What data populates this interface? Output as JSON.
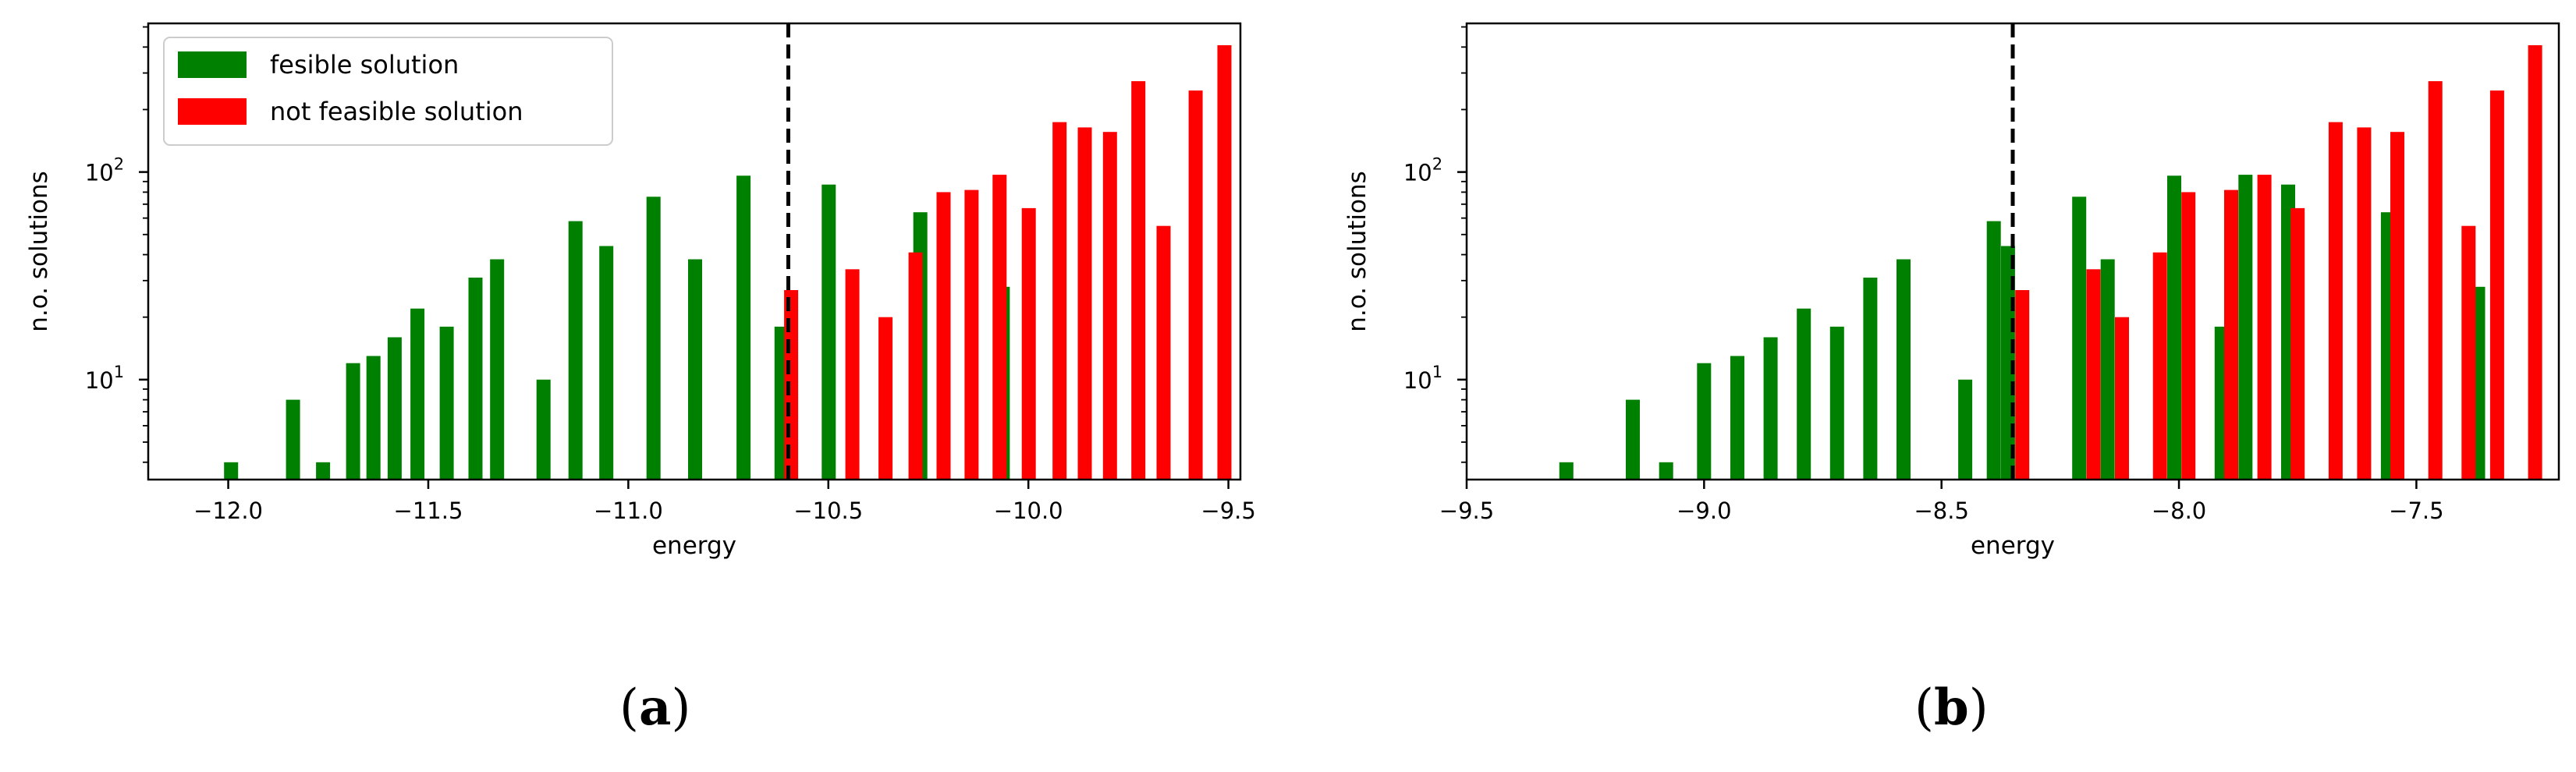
{
  "colors": {
    "feasible": "#008000",
    "not_feasible": "#ff0000",
    "axis": "#000000"
  },
  "chart_data": [
    {
      "type": "bar",
      "caption_letter": "a",
      "xlabel": "energy",
      "ylabel": "n.o. solutions",
      "yscale": "log",
      "xlim": [
        -12.2,
        -9.47
      ],
      "ylim": [
        3.3,
        520
      ],
      "xticks": [
        "−12.0",
        "−11.5",
        "−11.0",
        "−10.5",
        "−10.0",
        "−9.5"
      ],
      "xtick_values": [
        -12.0,
        -11.5,
        -11.0,
        -10.5,
        -10.0,
        -9.5
      ],
      "yticks": [
        {
          "base": "10",
          "exp": "1",
          "value": 10
        },
        {
          "base": "10",
          "exp": "2",
          "value": 100
        }
      ],
      "threshold": -10.6,
      "threshold_style": "dashed",
      "legend": {
        "position": "upper-left",
        "entries": [
          "fesible solution",
          "not feasible solution"
        ]
      },
      "series": [
        {
          "name": "fesible solution",
          "color": "#008000",
          "x": [
            -11.993,
            -11.838,
            -11.763,
            -11.688,
            -11.637,
            -11.584,
            -11.527,
            -11.454,
            -11.382,
            -11.328,
            -11.212,
            -11.132,
            -11.055,
            -10.937,
            -10.833,
            -10.712,
            -10.617,
            -10.499,
            -10.27,
            -10.064
          ],
          "values": [
            4,
            8,
            4,
            12,
            13,
            16,
            22,
            18,
            31,
            38,
            10,
            58,
            44,
            76,
            38,
            96,
            18,
            87,
            64,
            28
          ]
        },
        {
          "name": "not feasible solution",
          "color": "#ff0000",
          "x": [
            -10.593,
            -10.44,
            -10.357,
            -10.282,
            -10.212,
            -10.142,
            -10.072,
            -9.999,
            -9.922,
            -9.859,
            -9.796,
            -9.725,
            -9.662,
            -9.582,
            -9.51
          ],
          "values": [
            27,
            34,
            20,
            41,
            80,
            82,
            97,
            67,
            174,
            164,
            156,
            274,
            55,
            247,
            408
          ]
        }
      ]
    },
    {
      "type": "bar",
      "caption_letter": "b",
      "xlabel": "energy",
      "ylabel": "n.o. solutions",
      "yscale": "log",
      "xlim": [
        -9.5,
        -7.2
      ],
      "ylim": [
        3.3,
        520
      ],
      "xticks": [
        "−9.5",
        "−9.0",
        "−8.5",
        "−8.0",
        "−7.5"
      ],
      "xtick_values": [
        -9.5,
        -9.0,
        -8.5,
        -8.0,
        -7.5
      ],
      "yticks": [
        {
          "base": "10",
          "exp": "1",
          "value": 10
        },
        {
          "base": "10",
          "exp": "2",
          "value": 100
        }
      ],
      "threshold": -8.35,
      "threshold_style": "dashed",
      "series": [
        {
          "name": "fesible solution",
          "color": "#008000",
          "x": [
            -9.29,
            -9.15,
            -9.08,
            -9.0,
            -8.93,
            -8.86,
            -8.79,
            -8.72,
            -8.65,
            -8.58,
            -8.45,
            -8.39,
            -8.36,
            -8.21,
            -8.15,
            -8.01,
            -7.91,
            -7.86,
            -7.77,
            -7.56,
            -7.37
          ],
          "values": [
            4,
            8,
            4,
            12,
            13,
            16,
            22,
            18,
            31,
            38,
            10,
            58,
            44,
            76,
            38,
            96,
            18,
            97,
            87,
            64,
            28
          ]
        },
        {
          "name": "not feasible solution",
          "color": "#ff0000",
          "x": [
            -8.33,
            -8.18,
            -8.12,
            -8.04,
            -7.98,
            -7.89,
            -7.82,
            -7.75,
            -7.67,
            -7.61,
            -7.54,
            -7.46,
            -7.39,
            -7.33,
            -7.25
          ],
          "values": [
            27,
            34,
            20,
            41,
            80,
            82,
            97,
            67,
            174,
            164,
            156,
            274,
            55,
            247,
            408
          ]
        }
      ]
    }
  ]
}
